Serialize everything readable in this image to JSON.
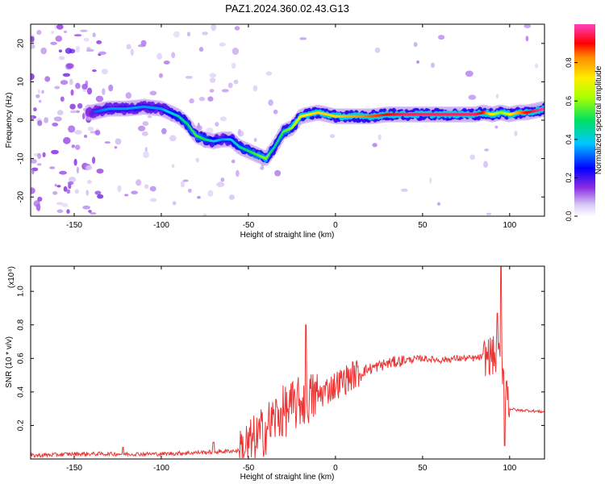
{
  "title": "PAZ1.2024.360.02.43.G13",
  "chart_data": [
    {
      "type": "heatmap",
      "xlabel": "Height of straight line (km)",
      "ylabel": "Frequency (Hz)",
      "xlim": [
        -175,
        120
      ],
      "ylim": [
        -25,
        25
      ],
      "x_ticks": [
        -150,
        -100,
        -50,
        0,
        50,
        100
      ],
      "y_ticks": [
        -20,
        -10,
        0,
        10,
        20
      ],
      "colorbar": {
        "label": "Normalized spectral amplitude",
        "range": [
          0,
          1
        ],
        "ticks": [
          0.0,
          0.2,
          0.4,
          0.6,
          0.8
        ],
        "tick_labels": [
          "0.0",
          "0.2",
          "0.4",
          "0.6",
          "0.8"
        ]
      },
      "ridge": {
        "x": [
          -140,
          -130,
          -120,
          -110,
          -100,
          -90,
          -85,
          -80,
          -75,
          -70,
          -65,
          -60,
          -55,
          -50,
          -45,
          -40,
          -35,
          -30,
          -25,
          -20,
          -10,
          0,
          10,
          20,
          30,
          40,
          50,
          60,
          70,
          80,
          85,
          90,
          95,
          100,
          105,
          110,
          115,
          120
        ],
        "frequency": [
          2,
          3,
          3,
          3.5,
          3,
          1,
          -1,
          -4,
          -5,
          -5.5,
          -5,
          -5,
          -7,
          -8,
          -9,
          -10,
          -7,
          -3,
          -2,
          1,
          2,
          1,
          1,
          1,
          1.5,
          1.5,
          1.5,
          1.5,
          1.5,
          1.5,
          2,
          1.5,
          2,
          1.5,
          2,
          2,
          2.5,
          3
        ],
        "amplitude": [
          0.3,
          0.35,
          0.35,
          0.35,
          0.35,
          0.45,
          0.5,
          0.55,
          0.5,
          0.4,
          0.35,
          0.4,
          0.45,
          0.5,
          0.55,
          0.6,
          0.45,
          0.55,
          0.6,
          0.7,
          0.75,
          0.75,
          0.8,
          0.85,
          0.9,
          0.95,
          0.95,
          0.95,
          0.95,
          0.95,
          0.9,
          0.7,
          0.6,
          0.7,
          0.8,
          0.9,
          0.95,
          1.0
        ]
      },
      "noise_region_x": [
        -175,
        -55
      ]
    },
    {
      "type": "line",
      "xlabel": "Height of straight line (km)",
      "ylabel": "SNR (10 * v/v)",
      "y_scale_label": "(x10⁴)",
      "xlim": [
        -175,
        120
      ],
      "ylim": [
        0,
        1.15
      ],
      "x_ticks": [
        -150,
        -100,
        -50,
        0,
        50,
        100
      ],
      "y_ticks": [
        0.2,
        0.4,
        0.6,
        0.8,
        1.0
      ],
      "y_tick_labels": [
        "0.2",
        "0.4",
        "0.6",
        "0.8",
        "1.0"
      ],
      "series": [
        {
          "color": "#ee3333",
          "x": [
            -175,
            -150,
            -125,
            -100,
            -75,
            -55,
            -50,
            -45,
            -40,
            -35,
            -30,
            -25,
            -20,
            -15,
            -10,
            -5,
            0,
            5,
            10,
            20,
            30,
            40,
            50,
            60,
            70,
            80,
            85,
            90,
            92,
            94,
            96,
            98,
            100,
            105,
            110,
            120
          ],
          "values": [
            0.02,
            0.03,
            0.03,
            0.03,
            0.04,
            0.05,
            0.08,
            0.12,
            0.18,
            0.24,
            0.28,
            0.31,
            0.34,
            0.36,
            0.38,
            0.41,
            0.44,
            0.47,
            0.5,
            0.54,
            0.57,
            0.59,
            0.6,
            0.59,
            0.6,
            0.6,
            0.61,
            0.62,
            0.6,
            0.58,
            0.55,
            0.45,
            0.3,
            0.29,
            0.29,
            0.28
          ]
        }
      ],
      "spikes": [
        {
          "x": -122,
          "value": 0.07
        },
        {
          "x": -70,
          "value": 0.1
        },
        {
          "x": -17,
          "value": 0.8
        },
        {
          "x": 95,
          "value": 1.15
        },
        {
          "x": 93,
          "value": 0.87
        },
        {
          "x": 97,
          "value": 0.08
        }
      ]
    }
  ]
}
